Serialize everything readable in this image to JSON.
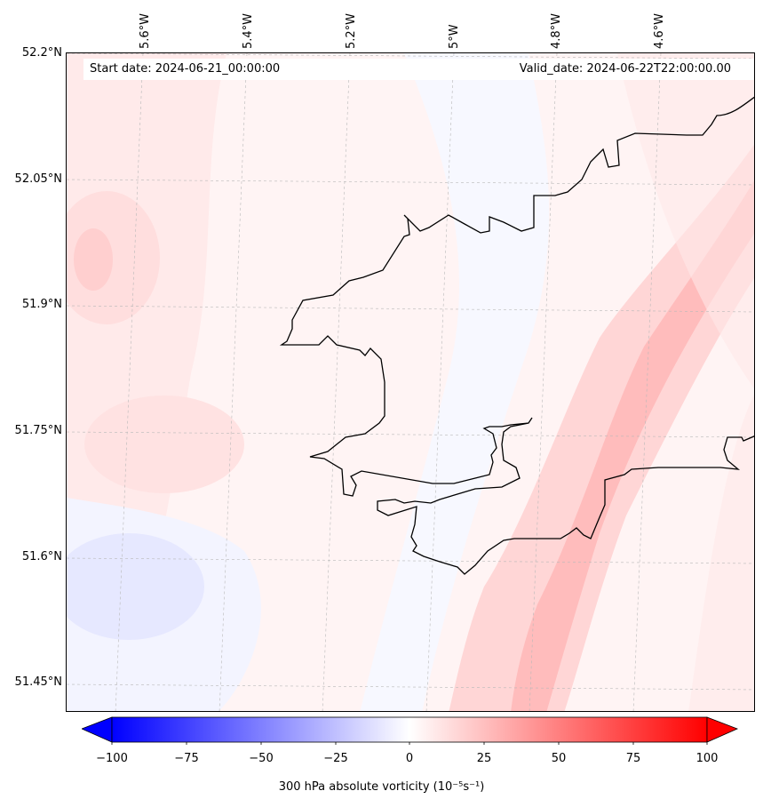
{
  "header": {
    "start_date": "Start date: 2024-06-21_00:00:00",
    "valid_date": "Valid_date: 2024-06-22T22:00:00.00"
  },
  "axes": {
    "lat_labels": [
      "52.2°N",
      "52.05°N",
      "51.9°N",
      "51.75°N",
      "51.6°N",
      "51.45°N"
    ],
    "lon_labels": [
      "5.6°W",
      "5.4°W",
      "5.2°W",
      "5°W",
      "4.8°W",
      "4.6°W"
    ]
  },
  "colorbar": {
    "label": "300 hPa absolute vorticity (10⁻⁵s⁻¹)",
    "ticks": [
      "−100",
      "−75",
      "−50",
      "−25",
      "0",
      "25",
      "50",
      "75",
      "100"
    ],
    "range": [
      -100,
      100
    ],
    "colormap": "bwr",
    "extend": "both"
  },
  "colors": {
    "coastline": "#000000",
    "grid": "#b0b0b0",
    "positive": "#ff0000",
    "negative": "#0000ff"
  }
}
